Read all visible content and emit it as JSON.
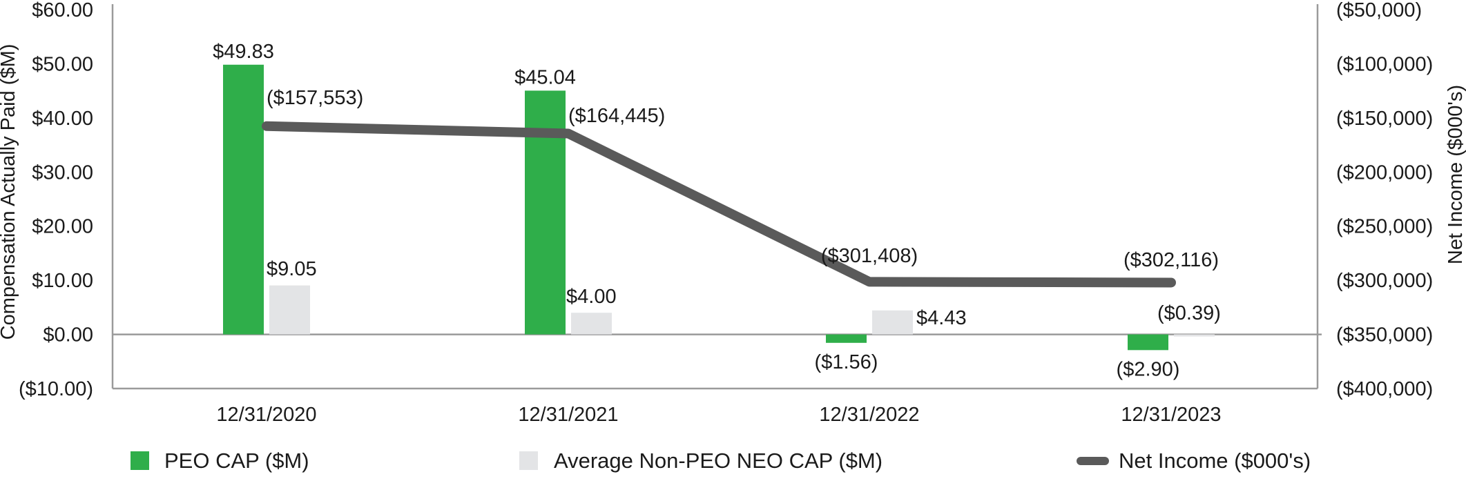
{
  "chart_data": {
    "type": "bar+line",
    "categories": [
      "12/31/2020",
      "12/31/2021",
      "12/31/2022",
      "12/31/2023"
    ],
    "series": [
      {
        "name": "PEO CAP ($M)",
        "kind": "bar",
        "axis": "left",
        "color": "#2fae4a",
        "values": [
          49.83,
          45.04,
          -1.56,
          -2.9
        ],
        "labels": [
          "$49.83",
          "$45.04",
          "($1.56)",
          "($2.90)"
        ]
      },
      {
        "name": "Average Non-PEO NEO CAP ($M)",
        "kind": "bar",
        "axis": "left",
        "color": "#e3e4e6",
        "values": [
          9.05,
          4.0,
          4.43,
          -0.39
        ],
        "labels": [
          "$9.05",
          "$4.00",
          "$4.43",
          "($0.39)"
        ]
      },
      {
        "name": "Net Income ($000's)",
        "kind": "line",
        "axis": "right",
        "color": "#5a5a5a",
        "values": [
          -157553,
          -164445,
          -301408,
          -302116
        ],
        "labels": [
          "($157,553)",
          "($164,445)",
          "($301,408)",
          "($302,116)"
        ]
      }
    ],
    "left_axis": {
      "label": "Compensation Actually Paid ($M)",
      "range": [
        -10,
        60
      ],
      "ticks": [
        60,
        50,
        40,
        30,
        20,
        10,
        0,
        -10
      ],
      "tick_labels": [
        "$60.00",
        "$50.00",
        "$40.00",
        "$30.00",
        "$20.00",
        "$10.00",
        "$0.00",
        "($10.00)"
      ]
    },
    "right_axis": {
      "label": "Net Income ($000's)",
      "range": [
        -400000,
        -50000
      ],
      "ticks": [
        -50000,
        -100000,
        -150000,
        -200000,
        -250000,
        -300000,
        -350000,
        -400000
      ],
      "tick_labels": [
        "($50,000)",
        "($100,000)",
        "($150,000)",
        "($200,000)",
        "($250,000)",
        "($300,000)",
        "($350,000)",
        "($400,000)"
      ]
    },
    "legend": [
      "PEO CAP ($M)",
      "Average Non-PEO NEO CAP ($M)",
      "Net Income ($000's)"
    ],
    "legend_position": "bottom",
    "grid": false
  }
}
